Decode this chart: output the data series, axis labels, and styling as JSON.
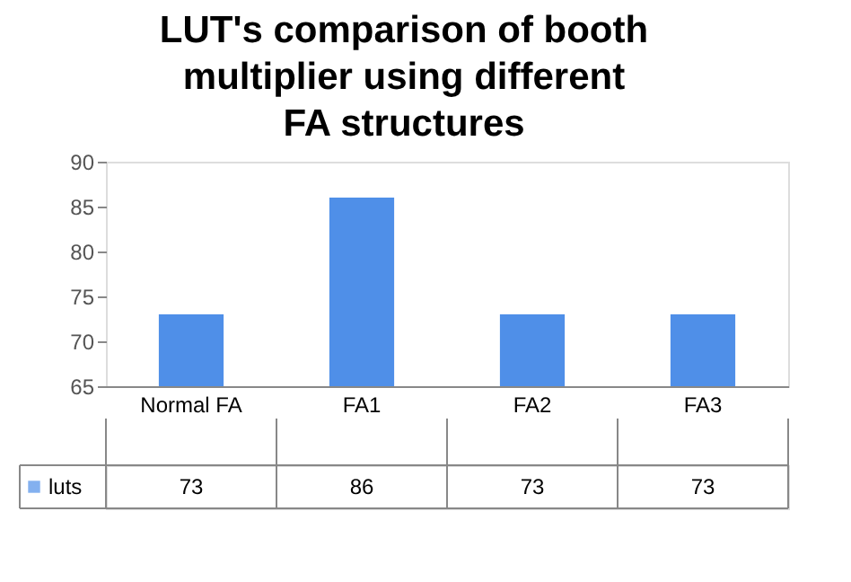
{
  "chart_data": {
    "type": "bar",
    "title": "LUT's comparison of booth multiplier using different FA structures",
    "categories": [
      "Normal FA",
      "FA1",
      "FA2",
      "FA3"
    ],
    "series": [
      {
        "name": "luts",
        "color": "#4f8fe8",
        "values": [
          73,
          86,
          73,
          73
        ]
      }
    ],
    "ylim": [
      65,
      90
    ],
    "yticks": [
      65,
      70,
      75,
      80,
      85,
      90
    ],
    "grid": false,
    "legend": "bottom",
    "data_labels": true
  }
}
